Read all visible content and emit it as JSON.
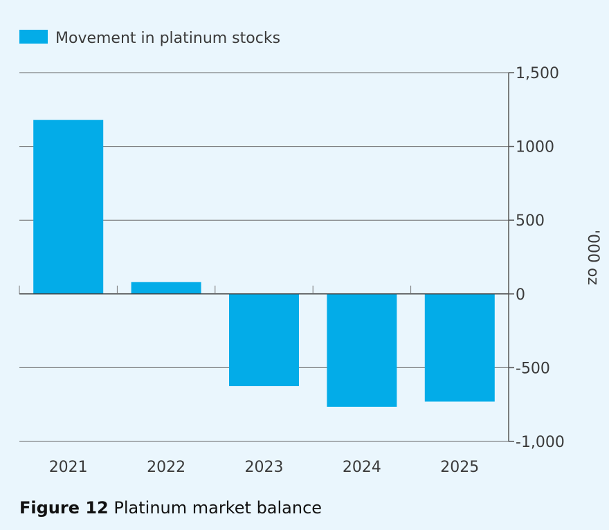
{
  "chart_data": {
    "type": "bar",
    "legend": {
      "label": "Movement in platinum stocks",
      "position": "top-left"
    },
    "categories": [
      "2021",
      "2022",
      "2023",
      "2024",
      "2025"
    ],
    "series": [
      {
        "name": "Movement in platinum stocks",
        "values": [
          1180,
          80,
          -625,
          -765,
          -730
        ]
      }
    ],
    "ylim": [
      -1000,
      1500
    ],
    "yticks": [
      1500,
      1000,
      500,
      0,
      -500,
      -1000
    ],
    "ytick_labels": [
      "1,500",
      "1000",
      "500",
      "0",
      "-500",
      "-1,000"
    ],
    "ylabel": "'000 oz",
    "xlabel": "",
    "grid": true,
    "y_axis_side": "right"
  },
  "caption": {
    "label": "Figure 12",
    "text": "Platinum market balance"
  },
  "colors": {
    "bar": "#03ace8",
    "background": "#eaf6fd",
    "axis": "#555555",
    "grid": "#666666",
    "text": "#3a3a3a"
  }
}
